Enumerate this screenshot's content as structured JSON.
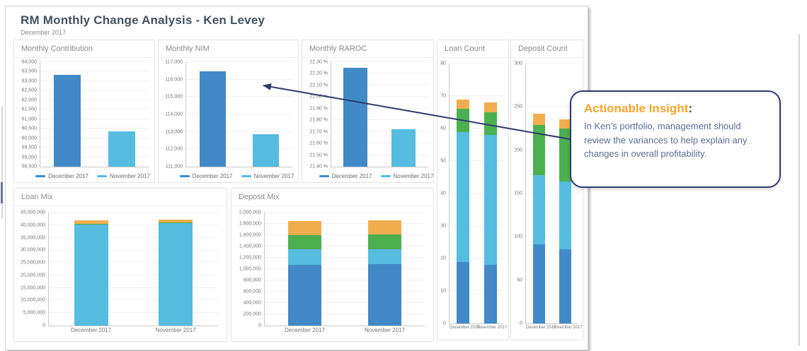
{
  "page": {
    "title": "RM Monthly Change Analysis - Ken Levey",
    "subtitle": "December 2017"
  },
  "colors": {
    "dark_blue": "#4189C7",
    "light_blue": "#56BCE0",
    "green": "#4CAF50",
    "orange": "#F2AE4E",
    "navy": "#2E3A6E",
    "insight_orange": "#F7A42B",
    "insight_text": "#5C6D93"
  },
  "insight": {
    "title": "Actionable Insight",
    "colon": ":",
    "body": "In Ken’s portfolio, management should review the variances to help explain any changes in overall profitability."
  },
  "chart_data": [
    {
      "id": "monthly-contribution",
      "type": "bar",
      "title": "Monthly Contribution",
      "categories": [
        "December 2017",
        "November 2017"
      ],
      "values": [
        63350,
        60350
      ],
      "bar_colors": [
        "dark_blue",
        "light_blue"
      ],
      "ylim": [
        58500,
        64000
      ],
      "ytick_step": 500,
      "tick_format": "number",
      "grid": true,
      "legend_position": "bottom",
      "legend": [
        {
          "label": "December 2017",
          "color": "dark_blue"
        },
        {
          "label": "November 2017",
          "color": "light_blue"
        }
      ],
      "show_x_labels": false
    },
    {
      "id": "monthly-nim",
      "type": "bar",
      "title": "Monthly NIM",
      "categories": [
        "December 2017",
        "November 2017"
      ],
      "values": [
        116480,
        112850
      ],
      "bar_colors": [
        "dark_blue",
        "light_blue"
      ],
      "ylim": [
        111000,
        117000
      ],
      "ytick_step": 1000,
      "tick_format": "number",
      "grid": true,
      "legend_position": "bottom",
      "legend": [
        {
          "label": "December 2017",
          "color": "dark_blue"
        },
        {
          "label": "November 2017",
          "color": "light_blue"
        }
      ],
      "show_x_labels": false
    },
    {
      "id": "monthly-raroc",
      "type": "bar",
      "title": "Monthly RAROC",
      "categories": [
        "December 2017",
        "November 2017"
      ],
      "values": [
        22.25,
        21.72
      ],
      "bar_colors": [
        "dark_blue",
        "light_blue"
      ],
      "ylim": [
        21.4,
        22.3
      ],
      "ytick_step": 0.1,
      "tick_format": "percent",
      "grid": true,
      "legend_position": "bottom",
      "legend": [
        {
          "label": "December 2017",
          "color": "dark_blue"
        },
        {
          "label": "November 2017",
          "color": "light_blue"
        }
      ],
      "show_x_labels": false
    },
    {
      "id": "loan-count",
      "type": "stacked-bar",
      "title": "Loan Count",
      "categories": [
        "December 2017",
        "November 2017"
      ],
      "series": [
        {
          "name": "dark-blue-segment",
          "color": "dark_blue",
          "values": [
            19,
            18
          ]
        },
        {
          "name": "light-blue-segment",
          "color": "light_blue",
          "values": [
            40,
            40
          ]
        },
        {
          "name": "green-segment",
          "color": "green",
          "values": [
            7,
            7
          ]
        },
        {
          "name": "orange-segment",
          "color": "orange",
          "values": [
            3,
            3
          ]
        }
      ],
      "ylim": [
        0,
        80
      ],
      "ytick_step": 10,
      "tick_format": "number",
      "grid": true,
      "show_x_labels": true
    },
    {
      "id": "deposit-count",
      "type": "stacked-bar",
      "title": "Deposit Count",
      "categories": [
        "December 2017",
        "November 2017"
      ],
      "series": [
        {
          "name": "dark-blue-segment",
          "color": "dark_blue",
          "values": [
            91,
            86
          ]
        },
        {
          "name": "light-blue-segment",
          "color": "light_blue",
          "values": [
            80,
            78
          ]
        },
        {
          "name": "green-segment",
          "color": "green",
          "values": [
            58,
            61
          ]
        },
        {
          "name": "orange-segment",
          "color": "orange",
          "values": [
            13,
            11
          ]
        }
      ],
      "ylim": [
        0,
        300
      ],
      "ytick_step": 50,
      "tick_format": "number",
      "grid": true,
      "show_x_labels": true
    },
    {
      "id": "loan-mix",
      "type": "stacked-bar",
      "title": "Loan Mix",
      "categories": [
        "December 2017",
        "November 2017"
      ],
      "series": [
        {
          "name": "light-blue-segment",
          "color": "light_blue",
          "values": [
            40300000,
            40900000
          ]
        },
        {
          "name": "green-segment",
          "color": "green",
          "values": [
            300000,
            200000
          ]
        },
        {
          "name": "orange-segment",
          "color": "orange",
          "values": [
            1300000,
            1200000
          ]
        }
      ],
      "ylim": [
        0,
        45000000
      ],
      "ytick_step": 5000000,
      "tick_format": "number",
      "grid": true,
      "show_x_labels": true
    },
    {
      "id": "deposit-mix",
      "type": "stacked-bar",
      "title": "Deposit Mix",
      "categories": [
        "December 2017",
        "November 2017"
      ],
      "series": [
        {
          "name": "dark-blue-segment",
          "color": "dark_blue",
          "values": [
            1080000,
            1090000
          ]
        },
        {
          "name": "light-blue-segment",
          "color": "light_blue",
          "values": [
            270000,
            260000
          ]
        },
        {
          "name": "green-segment",
          "color": "green",
          "values": [
            250000,
            260000
          ]
        },
        {
          "name": "orange-segment",
          "color": "orange",
          "values": [
            255000,
            255000
          ]
        }
      ],
      "ylim": [
        0,
        2000000
      ],
      "ytick_step": 200000,
      "tick_format": "number",
      "grid": true,
      "show_x_labels": true
    }
  ]
}
